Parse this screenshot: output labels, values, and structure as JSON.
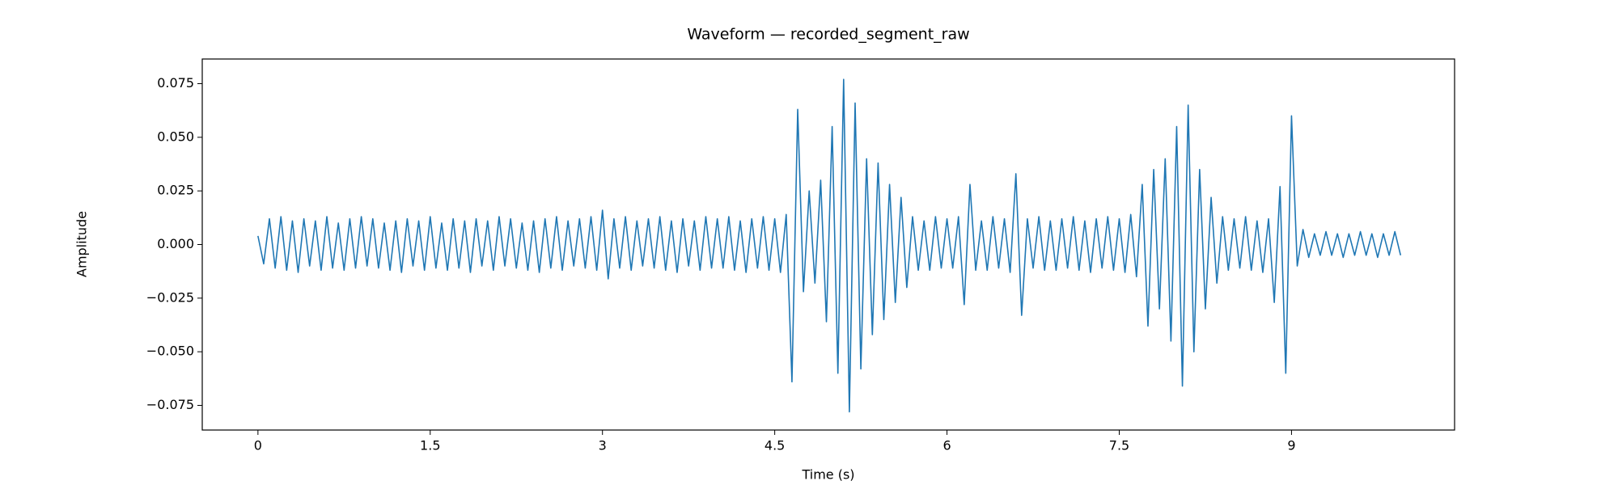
{
  "chart_data": {
    "type": "line",
    "title": "Waveform — recorded_segment_raw",
    "xlabel": "Time (s)",
    "ylabel": "Amplitude",
    "x": [
      0,
      0.05,
      0.1,
      0.15,
      0.2,
      0.25,
      0.3,
      0.35,
      0.4,
      0.45,
      0.5,
      0.55,
      0.6,
      0.65,
      0.7,
      0.75,
      0.8,
      0.85,
      0.9,
      0.95,
      1,
      1.05,
      1.1,
      1.15,
      1.2,
      1.25,
      1.3,
      1.35,
      1.4,
      1.45,
      1.5,
      1.55,
      1.6,
      1.65,
      1.7,
      1.75,
      1.8,
      1.85,
      1.9,
      1.95,
      2,
      2.05,
      2.1,
      2.15,
      2.2,
      2.25,
      2.3,
      2.35,
      2.4,
      2.45,
      2.5,
      2.55,
      2.6,
      2.65,
      2.7,
      2.75,
      2.8,
      2.85,
      2.9,
      2.95,
      3,
      3.05,
      3.1,
      3.15,
      3.2,
      3.25,
      3.3,
      3.35,
      3.4,
      3.45,
      3.5,
      3.55,
      3.6,
      3.65,
      3.7,
      3.75,
      3.8,
      3.85,
      3.9,
      3.95,
      4,
      4.05,
      4.1,
      4.15,
      4.2,
      4.25,
      4.3,
      4.35,
      4.4,
      4.45,
      4.5,
      4.55,
      4.6,
      4.65,
      4.7,
      4.75,
      4.8,
      4.85,
      4.9,
      4.95,
      5,
      5.05,
      5.1,
      5.15,
      5.2,
      5.25,
      5.3,
      5.35,
      5.4,
      5.45,
      5.5,
      5.55,
      5.6,
      5.65,
      5.7,
      5.75,
      5.8,
      5.85,
      5.9,
      5.95,
      6,
      6.05,
      6.1,
      6.15,
      6.2,
      6.25,
      6.3,
      6.35,
      6.4,
      6.45,
      6.5,
      6.55,
      6.6,
      6.65,
      6.7,
      6.75,
      6.8,
      6.85,
      6.9,
      6.95,
      7,
      7.05,
      7.1,
      7.15,
      7.2,
      7.25,
      7.3,
      7.35,
      7.4,
      7.45,
      7.5,
      7.55,
      7.6,
      7.65,
      7.7,
      7.75,
      7.8,
      7.85,
      7.9,
      7.95,
      8,
      8.05,
      8.1,
      8.15,
      8.2,
      8.25,
      8.3,
      8.35,
      8.4,
      8.45,
      8.5,
      8.55,
      8.6,
      8.65,
      8.7,
      8.75,
      8.8,
      8.85,
      8.9,
      8.95,
      9,
      9.05,
      9.1,
      9.15,
      9.2,
      9.25,
      9.3,
      9.35,
      9.4,
      9.45,
      9.5,
      9.55,
      9.6,
      9.65,
      9.7,
      9.75,
      9.8,
      9.85,
      9.9,
      9.95
    ],
    "series": [
      {
        "color": "#1f77b4",
        "values": [
          0.004,
          -0.009,
          0.012,
          -0.011,
          0.013,
          -0.012,
          0.011,
          -0.013,
          0.012,
          -0.01,
          0.011,
          -0.012,
          0.013,
          -0.011,
          0.01,
          -0.012,
          0.012,
          -0.011,
          0.013,
          -0.01,
          0.012,
          -0.011,
          0.01,
          -0.012,
          0.011,
          -0.013,
          0.012,
          -0.01,
          0.011,
          -0.012,
          0.013,
          -0.011,
          0.01,
          -0.012,
          0.012,
          -0.011,
          0.011,
          -0.013,
          0.012,
          -0.01,
          0.011,
          -0.012,
          0.013,
          -0.01,
          0.012,
          -0.011,
          0.01,
          -0.012,
          0.011,
          -0.013,
          0.012,
          -0.011,
          0.013,
          -0.012,
          0.011,
          -0.01,
          0.012,
          -0.011,
          0.013,
          -0.012,
          0.016,
          -0.016,
          0.012,
          -0.011,
          0.013,
          -0.012,
          0.011,
          -0.01,
          0.012,
          -0.011,
          0.013,
          -0.012,
          0.011,
          -0.013,
          0.012,
          -0.01,
          0.011,
          -0.012,
          0.013,
          -0.011,
          0.012,
          -0.011,
          0.013,
          -0.012,
          0.011,
          -0.013,
          0.012,
          -0.011,
          0.013,
          -0.012,
          0.012,
          -0.013,
          0.014,
          -0.064,
          0.063,
          -0.022,
          0.025,
          -0.018,
          0.03,
          -0.036,
          0.055,
          -0.06,
          0.077,
          -0.078,
          0.066,
          -0.058,
          0.04,
          -0.042,
          0.038,
          -0.035,
          0.028,
          -0.027,
          0.022,
          -0.02,
          0.013,
          -0.012,
          0.011,
          -0.012,
          0.013,
          -0.011,
          0.012,
          -0.011,
          0.013,
          -0.028,
          0.028,
          -0.012,
          0.011,
          -0.012,
          0.013,
          -0.011,
          0.012,
          -0.013,
          0.033,
          -0.033,
          0.012,
          -0.011,
          0.013,
          -0.012,
          0.011,
          -0.012,
          0.012,
          -0.011,
          0.013,
          -0.012,
          0.011,
          -0.013,
          0.012,
          -0.011,
          0.013,
          -0.012,
          0.012,
          -0.013,
          0.014,
          -0.015,
          0.028,
          -0.038,
          0.035,
          -0.03,
          0.04,
          -0.045,
          0.055,
          -0.066,
          0.065,
          -0.05,
          0.035,
          -0.03,
          0.022,
          -0.018,
          0.013,
          -0.012,
          0.012,
          -0.011,
          0.013,
          -0.012,
          0.011,
          -0.013,
          0.012,
          -0.027,
          0.027,
          -0.06,
          0.06,
          -0.01,
          0.007,
          -0.006,
          0.005,
          -0.005,
          0.006,
          -0.005,
          0.005,
          -0.006,
          0.005,
          -0.005,
          0.006,
          -0.005,
          0.005,
          -0.006,
          0.005,
          -0.005,
          0.006,
          -0.005
        ]
      }
    ],
    "xlim": [
      -0.485,
      10.42
    ],
    "ylim": [
      -0.0865,
      0.0865
    ],
    "xticks": [
      0,
      1.5,
      3,
      4.5,
      6,
      7.5,
      9
    ],
    "yticks": [
      {
        "value": -0.075,
        "label": "−0.075"
      },
      {
        "value": -0.05,
        "label": "−0.050"
      },
      {
        "value": -0.025,
        "label": "−0.025"
      },
      {
        "value": 0,
        "label": "0.000"
      },
      0.025,
      {
        "value": 0.05,
        "label": "0.050"
      },
      0.075
    ],
    "grid": false
  }
}
